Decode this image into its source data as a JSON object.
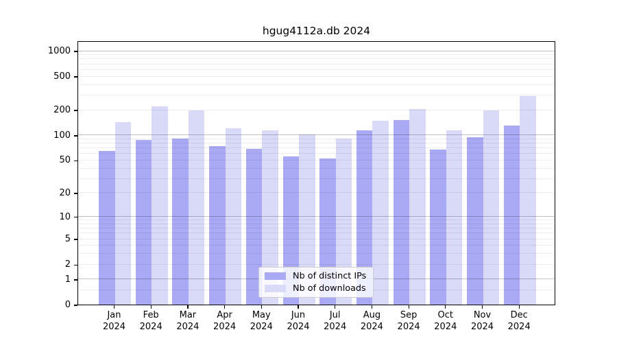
{
  "chart_data": {
    "type": "bar",
    "title": "hgug4112a.db 2024",
    "x": {
      "categories": [
        "Jan",
        "Feb",
        "Mar",
        "Apr",
        "May",
        "Jun",
        "Jul",
        "Aug",
        "Sep",
        "Oct",
        "Nov",
        "Dec"
      ],
      "sub_label": "2024"
    },
    "series": [
      {
        "name": "Nb of distinct IPs",
        "color": "#a9a9f6",
        "values": [
          64,
          88,
          91,
          74,
          68,
          56,
          52,
          114,
          150,
          67,
          94,
          130
        ]
      },
      {
        "name": "Nb of downloads",
        "color": "#d9d9f8",
        "values": [
          143,
          218,
          197,
          121,
          114,
          102,
          91,
          148,
          203,
          113,
          196,
          290
        ]
      }
    ],
    "y_axis": {
      "scale": "log10(1+x)",
      "range": [
        0,
        1300
      ],
      "ticks": [
        0,
        1,
        2,
        5,
        10,
        20,
        50,
        100,
        200,
        500,
        1000
      ],
      "major_gridlines": [
        1,
        10,
        100,
        1000
      ],
      "minor_gridlines": [
        0.5,
        2,
        3,
        4,
        5,
        6,
        7,
        8,
        9,
        20,
        30,
        40,
        50,
        60,
        70,
        80,
        90,
        200,
        300,
        400,
        500,
        600,
        700,
        800,
        900
      ]
    },
    "grid": true,
    "legend_position": "bottom-center"
  }
}
